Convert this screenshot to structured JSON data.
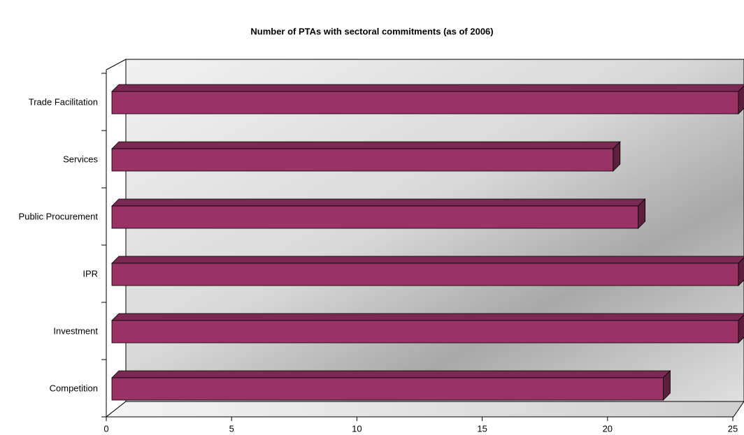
{
  "chart_data": {
    "type": "bar3d_horizontal",
    "title": "Number of PTAs with sectoral commitments (as of 2006)",
    "categories": [
      "Trade Facilitation",
      "Services",
      "Public Procurement",
      "IPR",
      "Investment",
      "Competition"
    ],
    "values": [
      25,
      20,
      21,
      25,
      25,
      22
    ],
    "color": "#993366",
    "xlim": [
      0,
      25
    ],
    "xticks": [
      0,
      5,
      10,
      15,
      20,
      25
    ]
  }
}
